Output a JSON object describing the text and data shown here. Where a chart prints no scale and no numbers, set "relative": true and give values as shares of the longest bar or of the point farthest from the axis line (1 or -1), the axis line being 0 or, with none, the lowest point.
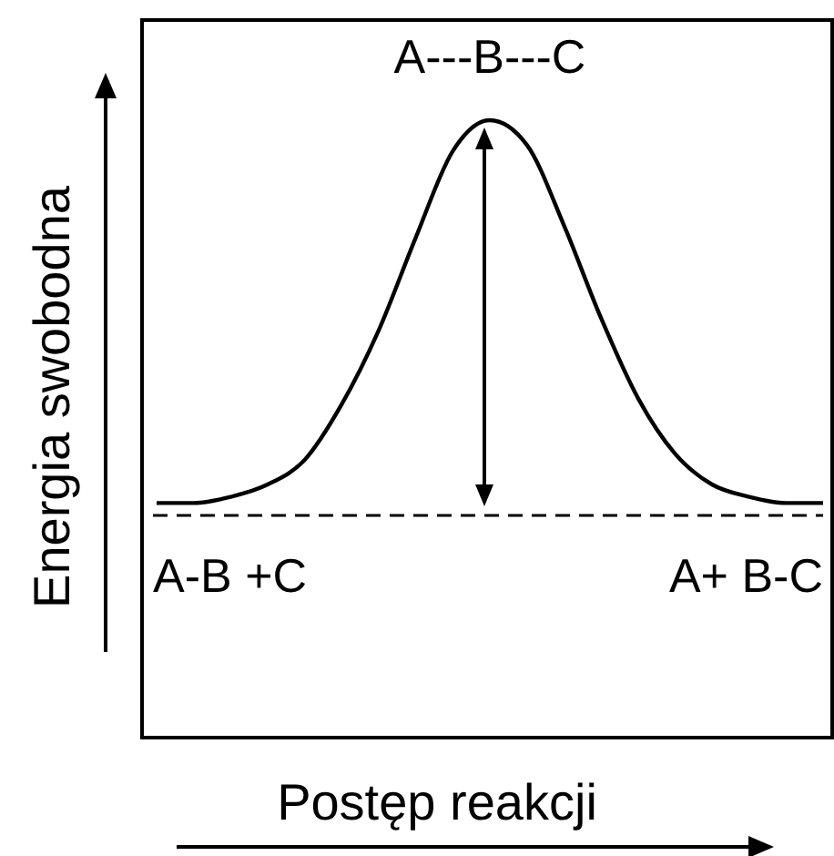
{
  "chart_data": {
    "type": "line",
    "relative": true,
    "xlabel": "Postęp reakcji",
    "ylabel": "Energia swobodna",
    "categories": [
      null,
      null,
      null,
      null,
      null,
      null,
      null,
      null,
      null,
      null,
      null,
      null,
      null,
      null,
      null,
      null,
      null,
      null,
      null
    ],
    "series": [
      {
        "color": "#000000",
        "values": [
          0.38,
          0.38,
          0.39,
          0.41,
          0.45,
          0.54,
          0.66,
          0.81,
          0.95,
          1,
          0.96,
          0.83,
          0.68,
          0.55,
          0.46,
          0.41,
          0.39,
          0.38,
          0.38
        ]
      }
    ],
    "ref_lines": [
      {
        "axis": "y",
        "value": 0.36,
        "color": "#000000",
        "line_style": "dashed"
      }
    ],
    "annotations": [
      {
        "text": "A---B---C",
        "y": 1
      },
      "A-B +C",
      "A+ B-C"
    ],
    "line_style": "solid"
  }
}
